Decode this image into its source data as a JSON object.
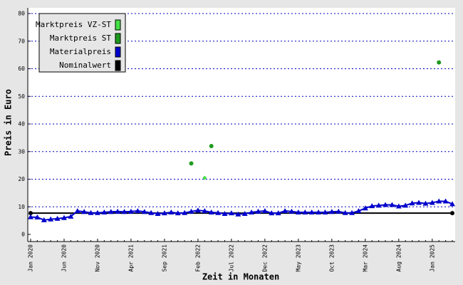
{
  "chart_data": {
    "type": "line",
    "x_label": "Zeit in Monaten",
    "y_label": "Preis in Euro",
    "categories": [
      "Jan 2020",
      null,
      null,
      null,
      null,
      "Jun 2020",
      null,
      null,
      null,
      null,
      "Nov 2020",
      null,
      null,
      null,
      null,
      "Apr 2021",
      null,
      null,
      null,
      null,
      "Sep 2021",
      null,
      null,
      null,
      null,
      "Feb 2022",
      null,
      null,
      null,
      null,
      "Jul 2022",
      null,
      null,
      null,
      null,
      "Dec 2022",
      null,
      null,
      null,
      null,
      "May 2023",
      null,
      null,
      null,
      null,
      "Oct 2023",
      null,
      null,
      null,
      null,
      "Mar 2024",
      null,
      null,
      null,
      null,
      "Aug 2024",
      null,
      null,
      null,
      null,
      "Jan 2025",
      null,
      null,
      null
    ],
    "ylim": [
      0,
      80
    ],
    "yticks": [
      0,
      10,
      20,
      30,
      40,
      50,
      60,
      70,
      80
    ],
    "grid": true,
    "legend": "top-left",
    "series": [
      {
        "name": "Marktpreis VZ-ST",
        "color": "#44e044",
        "marker": "diamond",
        "values": [
          null,
          null,
          null,
          null,
          null,
          null,
          null,
          null,
          null,
          null,
          null,
          null,
          null,
          null,
          null,
          null,
          null,
          null,
          null,
          null,
          null,
          null,
          null,
          null,
          null,
          null,
          20.5,
          null,
          null,
          null,
          null,
          null,
          null,
          null,
          null,
          null,
          null,
          null,
          null,
          null,
          null,
          null,
          null,
          null,
          null,
          null,
          null,
          null,
          null,
          null,
          null,
          null,
          null,
          null,
          null,
          null,
          null,
          null,
          null,
          null,
          null,
          null,
          null,
          null
        ]
      },
      {
        "name": "Marktpreis ST",
        "color": "#1e9a1e",
        "marker": "circle",
        "values": [
          null,
          null,
          null,
          null,
          null,
          null,
          null,
          null,
          null,
          null,
          null,
          null,
          null,
          null,
          null,
          null,
          null,
          null,
          null,
          null,
          null,
          null,
          null,
          null,
          25.7,
          null,
          null,
          32,
          null,
          null,
          null,
          null,
          null,
          null,
          null,
          null,
          null,
          null,
          null,
          null,
          null,
          null,
          null,
          null,
          null,
          null,
          null,
          null,
          null,
          null,
          null,
          null,
          null,
          null,
          null,
          null,
          null,
          null,
          null,
          null,
          null,
          62.3,
          null,
          null
        ]
      },
      {
        "name": "Materialpreis",
        "color": "#0000cc",
        "marker": "triangle",
        "values": [
          6.3,
          6.2,
          5.2,
          5.5,
          5.7,
          6.0,
          6.5,
          8.5,
          8.2,
          7.8,
          7.8,
          8.0,
          8.2,
          8.3,
          8.2,
          8.3,
          8.5,
          8.2,
          7.8,
          7.5,
          7.7,
          8.0,
          7.7,
          7.8,
          8.3,
          8.7,
          8.5,
          8.0,
          7.8,
          7.5,
          7.7,
          7.3,
          7.5,
          8.0,
          8.3,
          8.5,
          7.7,
          7.7,
          8.5,
          8.3,
          8.0,
          8.0,
          8.0,
          8.0,
          8.0,
          8.2,
          8.3,
          7.8,
          7.8,
          8.5,
          9.5,
          10.3,
          10.5,
          10.7,
          10.7,
          10.2,
          10.5,
          11.3,
          11.5,
          11.2,
          11.5,
          12.0,
          12.0,
          11.0
        ]
      },
      {
        "name": "Nominalwert",
        "color": "#000000",
        "marker": "circle",
        "markers": "ends",
        "values": [
          7.7,
          7.7,
          7.7,
          7.7,
          7.7,
          7.7,
          7.7,
          7.7,
          7.7,
          7.7,
          7.7,
          7.7,
          7.7,
          7.7,
          7.7,
          7.7,
          7.7,
          7.7,
          7.7,
          7.7,
          7.7,
          7.7,
          7.7,
          7.7,
          7.7,
          7.7,
          7.7,
          7.7,
          7.7,
          7.7,
          7.7,
          7.7,
          7.7,
          7.7,
          7.7,
          7.7,
          7.7,
          7.7,
          7.7,
          7.7,
          7.7,
          7.7,
          7.7,
          7.7,
          7.7,
          7.7,
          7.7,
          7.7,
          7.7,
          7.7,
          7.7,
          7.7,
          7.7,
          7.7,
          7.7,
          7.7,
          7.7,
          7.7,
          7.7,
          7.7,
          7.7,
          7.7,
          7.7,
          7.7
        ]
      }
    ]
  }
}
